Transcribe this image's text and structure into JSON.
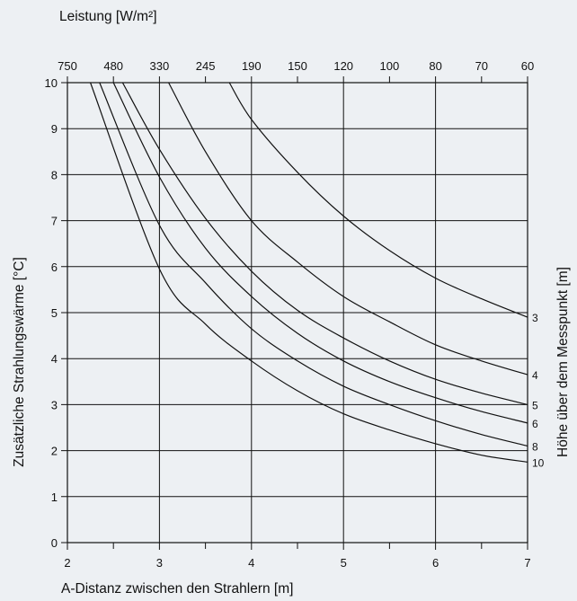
{
  "chart_data": {
    "type": "line",
    "title": "",
    "top_axis_label": "Leistung [W/m²]",
    "top_ticks": [
      "750",
      "480",
      "330",
      "245",
      "190",
      "150",
      "120",
      "100",
      "80",
      "70",
      "60"
    ],
    "xlabel": "A-Distanz zwischen den Strahlern [m]",
    "ylabel": "Zusätzliche Strahlungswärme [°C]",
    "right_label": "Höhe über dem Messpunkt [m]",
    "xlim": [
      2,
      7
    ],
    "ylim": [
      0,
      10
    ],
    "x_ticks": [
      "2",
      "3",
      "4",
      "5",
      "6",
      "7"
    ],
    "y_ticks": [
      "0",
      "1",
      "2",
      "3",
      "4",
      "5",
      "6",
      "7",
      "8",
      "9",
      "10"
    ],
    "grid": true,
    "series": [
      {
        "name": "3",
        "x": [
          3.76,
          4.0,
          4.5,
          5.0,
          5.5,
          6.0,
          6.5,
          7.0
        ],
        "y": [
          10.0,
          9.2,
          8.05,
          7.1,
          6.35,
          5.75,
          5.3,
          4.9
        ]
      },
      {
        "name": "4",
        "x": [
          3.1,
          3.5,
          4.0,
          4.5,
          5.0,
          5.5,
          6.0,
          6.5,
          7.0
        ],
        "y": [
          10.0,
          8.5,
          7.0,
          6.1,
          5.35,
          4.8,
          4.3,
          3.95,
          3.65
        ]
      },
      {
        "name": "5",
        "x": [
          2.6,
          3.0,
          3.5,
          4.0,
          4.5,
          5.0,
          5.5,
          6.0,
          6.5,
          7.0
        ],
        "y": [
          10.0,
          8.55,
          7.05,
          5.9,
          5.05,
          4.45,
          3.95,
          3.55,
          3.25,
          3.0
        ]
      },
      {
        "name": "6",
        "x": [
          2.5,
          3.0,
          3.5,
          4.0,
          4.5,
          5.0,
          5.5,
          6.0,
          6.5,
          7.0
        ],
        "y": [
          10.0,
          7.95,
          6.4,
          5.35,
          4.55,
          3.95,
          3.5,
          3.15,
          2.85,
          2.6
        ]
      },
      {
        "name": "8",
        "x": [
          2.35,
          3.0,
          3.5,
          4.0,
          4.5,
          5.0,
          5.5,
          6.0,
          6.5,
          7.0
        ],
        "y": [
          10.0,
          6.9,
          5.65,
          4.65,
          3.95,
          3.4,
          3.0,
          2.65,
          2.35,
          2.1
        ]
      },
      {
        "name": "10",
        "x": [
          2.25,
          3.0,
          3.5,
          4.0,
          4.5,
          5.0,
          5.5,
          6.0,
          6.5,
          7.0
        ],
        "y": [
          10.0,
          5.95,
          4.75,
          3.95,
          3.3,
          2.8,
          2.45,
          2.15,
          1.9,
          1.75
        ]
      }
    ]
  }
}
